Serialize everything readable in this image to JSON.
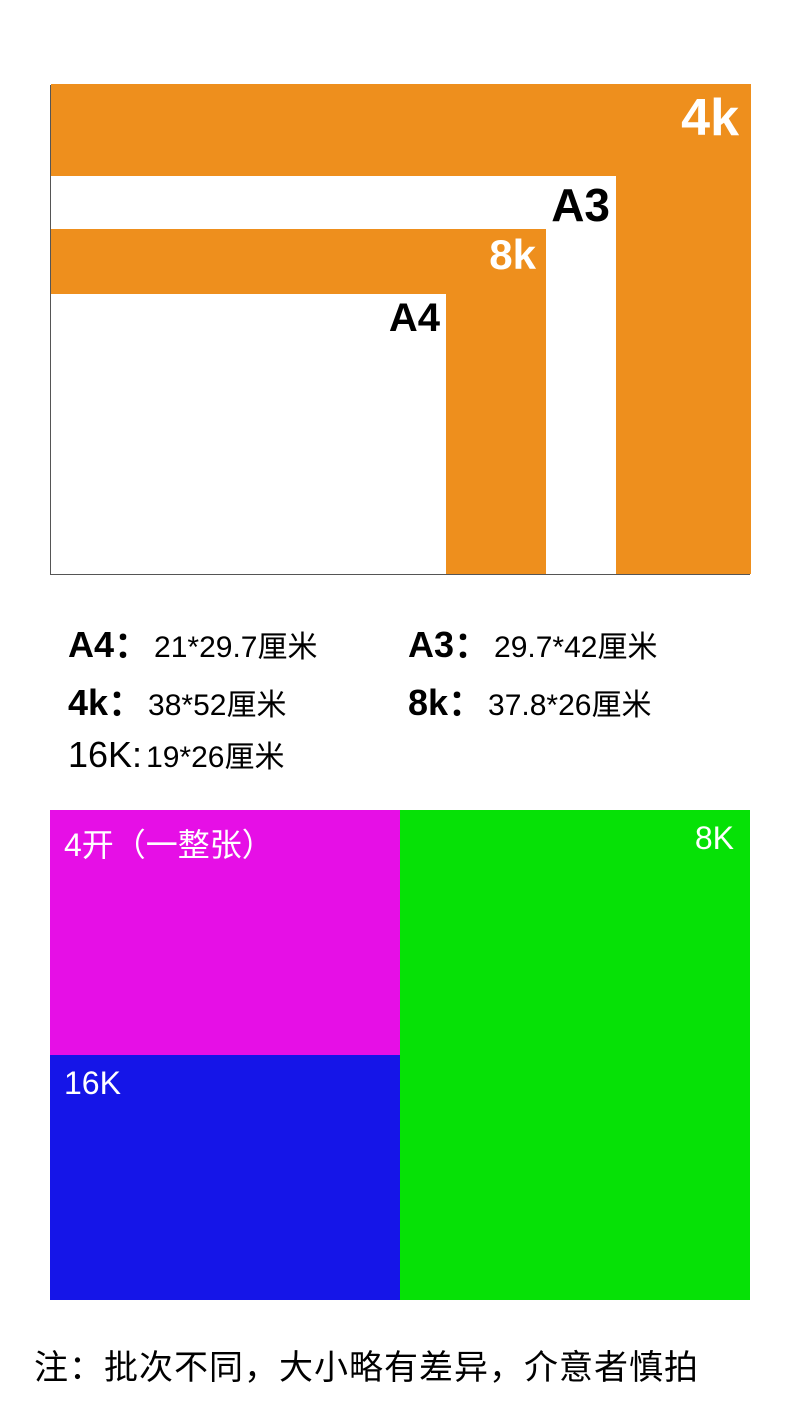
{
  "nested": {
    "rects": {
      "r4k": {
        "label": "4k",
        "fill": "#ee8f1d",
        "label_color": "#ffffff"
      },
      "a3": {
        "label": "A3",
        "fill": "#ffffff",
        "label_color": "#000000"
      },
      "r8k": {
        "label": "8k",
        "fill": "#ee8f1d",
        "label_color": "#ffffff"
      },
      "a4": {
        "label": "A4",
        "fill": "#ffffff",
        "label_color": "#000000"
      }
    },
    "border_color": "#555555"
  },
  "legend": {
    "a4": {
      "key": "A4：",
      "val": "21*29.7厘米"
    },
    "a3": {
      "key": "A3：",
      "val": "29.7*42厘米"
    },
    "r4k": {
      "key": "4k：",
      "val": "38*52厘米"
    },
    "r8k": {
      "key": "8k：",
      "val": "37.8*26厘米"
    },
    "r16k": {
      "key": "16K:",
      "val": "19*26厘米"
    }
  },
  "colorblocks": {
    "b4kai": {
      "label": "4开（一整张）",
      "fill": "#e60fe6",
      "label_color": "#ffffff"
    },
    "b8k": {
      "label": "8K",
      "fill": "#06e106",
      "label_color": "#ffffff"
    },
    "b16k": {
      "label": "16K",
      "fill": "#1515e8",
      "label_color": "#ffffff"
    }
  },
  "note": "注：批次不同，大小略有差异，介意者慎拍"
}
